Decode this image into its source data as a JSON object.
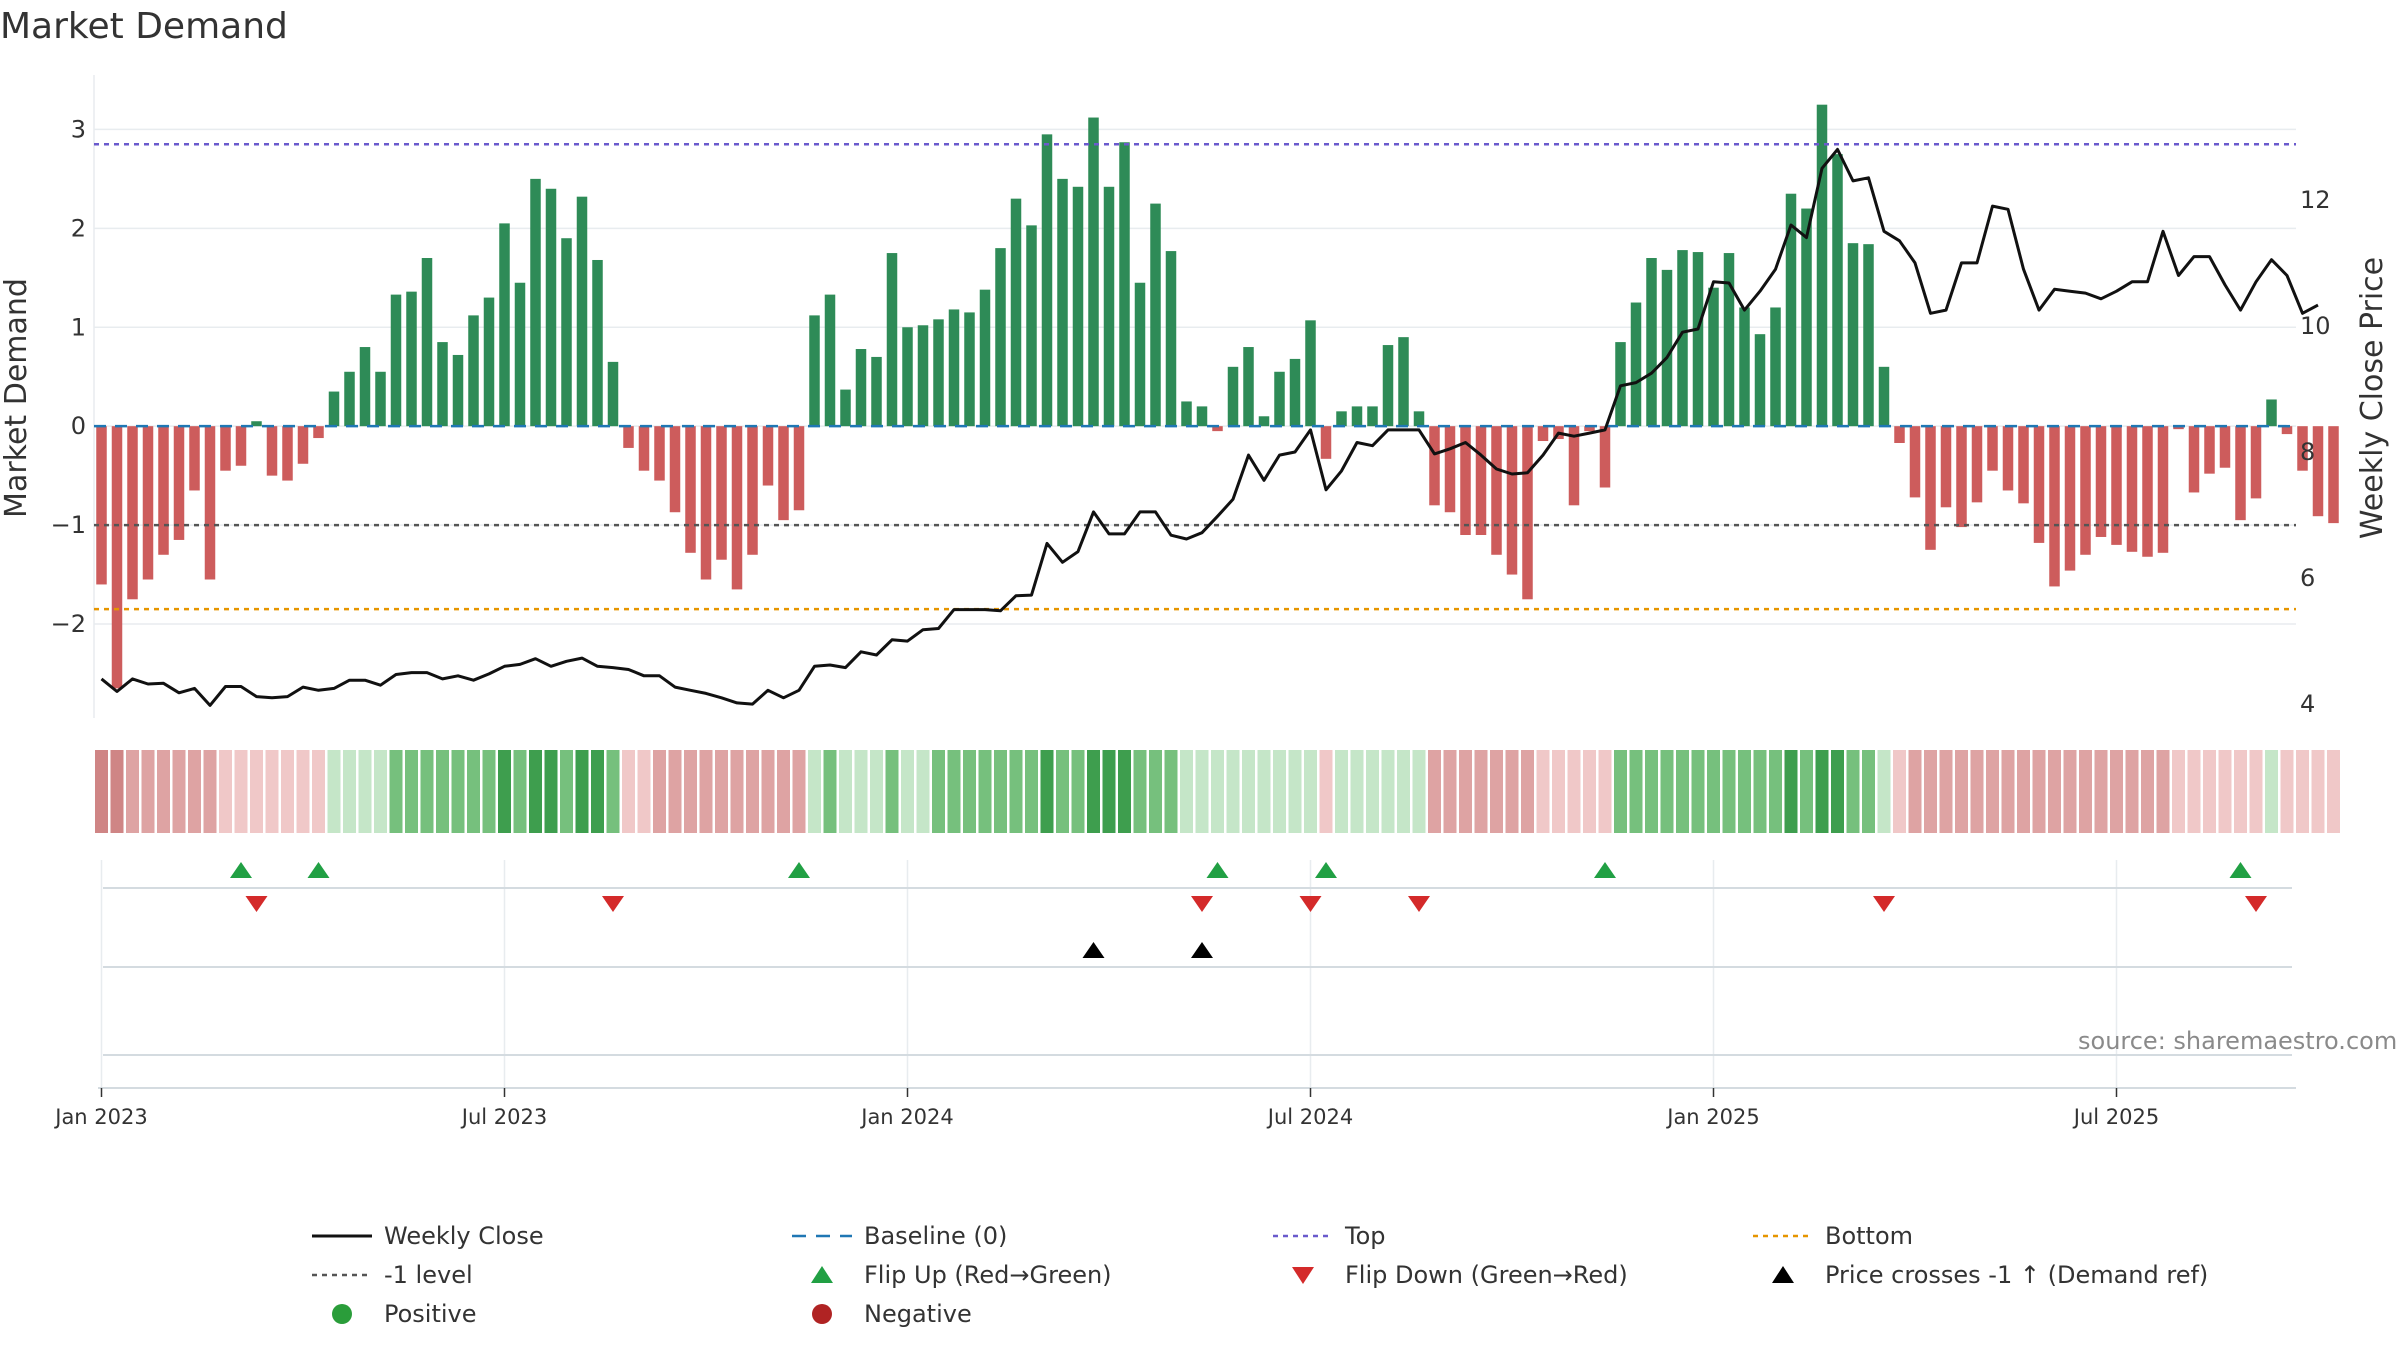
{
  "chart_data": {
    "type": "bar",
    "title": "Market Demand",
    "ylabel": "Market Demand",
    "y2label": "Weekly Close Price",
    "ylim": [
      -2.95,
      3.55
    ],
    "y2lim": [
      3.78,
      13.98
    ],
    "yticks": [
      "3",
      "2",
      "1",
      "0",
      "−1",
      "−2"
    ],
    "ytick_values": [
      3,
      2,
      1,
      0,
      -1,
      -2
    ],
    "y2ticks": [
      "12",
      "10",
      "8",
      "6",
      "4"
    ],
    "y2tick_values": [
      12,
      10,
      8,
      6,
      4
    ],
    "xticks": [
      "Jan 2023",
      "Jul 2023",
      "Jan 2024",
      "Jul 2024",
      "Jan 2025",
      "Jul 2025"
    ],
    "xtick_weeks": [
      0,
      26,
      52,
      78,
      104,
      130
    ],
    "reference_lines": {
      "top": 2.85,
      "bottom": -1.85,
      "minus_one": -1,
      "baseline": 0
    },
    "demand": [
      -1.6,
      -2.65,
      -1.75,
      -1.55,
      -1.3,
      -1.15,
      -0.65,
      -1.55,
      -0.45,
      -0.4,
      0.05,
      -0.5,
      -0.55,
      -0.38,
      -0.12,
      0.35,
      0.55,
      0.8,
      0.55,
      1.33,
      1.36,
      1.7,
      0.85,
      0.72,
      1.12,
      1.3,
      2.05,
      1.45,
      2.5,
      2.4,
      1.9,
      2.32,
      1.68,
      0.65,
      -0.22,
      -0.45,
      -0.55,
      -0.87,
      -1.28,
      -1.55,
      -1.35,
      -1.65,
      -1.3,
      -0.6,
      -0.95,
      -0.85,
      1.12,
      1.33,
      0.37,
      0.78,
      0.7,
      1.75,
      1.0,
      1.02,
      1.08,
      1.18,
      1.15,
      1.38,
      1.8,
      2.3,
      2.03,
      2.95,
      2.5,
      2.42,
      3.12,
      2.42,
      2.87,
      1.45,
      2.25,
      1.77,
      0.25,
      0.2,
      -0.05,
      0.6,
      0.8,
      0.1,
      0.55,
      0.68,
      1.07,
      -0.33,
      0.15,
      0.2,
      0.2,
      0.82,
      0.9,
      0.15,
      -0.8,
      -0.87,
      -1.1,
      -1.1,
      -1.3,
      -1.5,
      -1.75,
      -0.15,
      -0.13,
      -0.8,
      -0.05,
      -0.62,
      0.85,
      1.25,
      1.7,
      1.58,
      1.78,
      1.76,
      1.4,
      1.75,
      1.2,
      0.93,
      1.2,
      2.35,
      2.2,
      3.25,
      2.75,
      1.85,
      1.84,
      0.6,
      -0.17,
      -0.72,
      -1.25,
      -0.82,
      -1.02,
      -0.77,
      -0.45,
      -0.65,
      -0.78,
      -1.18,
      -1.62,
      -1.46,
      -1.3,
      -1.12,
      -1.2,
      -1.27,
      -1.32,
      -1.28,
      -0.03,
      -0.67,
      -0.48,
      -0.42,
      -0.95,
      -0.73,
      0.27,
      -0.08,
      -0.45,
      -0.91,
      -0.98
    ],
    "price": [
      4.4,
      4.2,
      4.4,
      4.32,
      4.33,
      4.18,
      4.25,
      3.98,
      4.28,
      4.28,
      4.12,
      4.1,
      4.12,
      4.27,
      4.22,
      4.25,
      4.38,
      4.38,
      4.3,
      4.47,
      4.5,
      4.5,
      4.4,
      4.45,
      4.38,
      4.48,
      4.6,
      4.63,
      4.72,
      4.6,
      4.68,
      4.73,
      4.6,
      4.58,
      4.55,
      4.45,
      4.45,
      4.27,
      4.22,
      4.17,
      4.1,
      4.02,
      4.0,
      4.22,
      4.1,
      4.22,
      4.6,
      4.62,
      4.58,
      4.83,
      4.78,
      5.02,
      5.0,
      5.18,
      5.2,
      5.5,
      5.5,
      5.5,
      5.48,
      5.72,
      5.73,
      6.55,
      6.25,
      6.42,
      7.05,
      6.7,
      6.7,
      7.05,
      7.05,
      6.68,
      6.62,
      6.72,
      6.98,
      7.25,
      7.95,
      7.55,
      7.95,
      8.0,
      8.35,
      7.4,
      7.7,
      8.15,
      8.1,
      8.35,
      8.35,
      8.35,
      7.97,
      8.05,
      8.15,
      7.95,
      7.73,
      7.65,
      7.67,
      7.95,
      8.3,
      8.25,
      8.3,
      8.35,
      9.05,
      9.1,
      9.25,
      9.5,
      9.9,
      9.95,
      10.7,
      10.68,
      10.25,
      10.55,
      10.9,
      11.6,
      11.4,
      12.5,
      12.8,
      12.3,
      12.35,
      11.5,
      11.35,
      11.0,
      10.2,
      10.25,
      11.0,
      11.0,
      11.9,
      11.85,
      10.9,
      10.25,
      10.58,
      10.55,
      10.52,
      10.43,
      10.55,
      10.7,
      10.7,
      11.5,
      10.8,
      11.1,
      11.1,
      10.65,
      10.25,
      10.7,
      11.05,
      10.8,
      10.2,
      10.33
    ],
    "heat_strip": {
      "palette": {
        "strong_pos": "#3e9e4e",
        "mid_pos": "#76c07d",
        "light_pos": "#c5e6c8",
        "light_neg": "#f0c8c8",
        "mid_neg": "#dea3a3",
        "strong_neg": "#cf8585"
      },
      "cells": [
        "sn",
        "sn",
        "mn",
        "mn",
        "mn",
        "mn",
        "mn",
        "mn",
        "ln",
        "ln",
        "ln",
        "ln",
        "ln",
        "ln",
        "ln",
        "lp",
        "lp",
        "lp",
        "lp",
        "mp",
        "mp",
        "mp",
        "mp",
        "mp",
        "mp",
        "mp",
        "sp",
        "mp",
        "sp",
        "sp",
        "mp",
        "sp",
        "sp",
        "mp",
        "ln",
        "ln",
        "mn",
        "mn",
        "mn",
        "mn",
        "mn",
        "mn",
        "mn",
        "mn",
        "mn",
        "mn",
        "lp",
        "mp",
        "lp",
        "lp",
        "lp",
        "mp",
        "lp",
        "lp",
        "mp",
        "mp",
        "mp",
        "mp",
        "mp",
        "mp",
        "mp",
        "sp",
        "mp",
        "mp",
        "sp",
        "sp",
        "sp",
        "mp",
        "mp",
        "mp",
        "lp",
        "lp",
        "lp",
        "lp",
        "lp",
        "lp",
        "lp",
        "lp",
        "lp",
        "ln",
        "lp",
        "lp",
        "lp",
        "lp",
        "lp",
        "lp",
        "mn",
        "mn",
        "mn",
        "mn",
        "mn",
        "mn",
        "mn",
        "ln",
        "ln",
        "ln",
        "ln",
        "ln",
        "mp",
        "mp",
        "mp",
        "mp",
        "mp",
        "mp",
        "mp",
        "mp",
        "mp",
        "mp",
        "mp",
        "sp",
        "mp",
        "sp",
        "sp",
        "mp",
        "mp",
        "lp",
        "ln",
        "mn",
        "mn",
        "mn",
        "mn",
        "mn",
        "mn",
        "mn",
        "mn",
        "mn",
        "mn",
        "mn",
        "mn",
        "mn",
        "mn",
        "mn",
        "mn",
        "mn",
        "ln",
        "ln",
        "ln",
        "ln",
        "ln",
        "ln",
        "lp",
        "ln",
        "ln",
        "ln",
        "ln"
      ]
    },
    "flip_up_weeks": [
      9,
      14,
      45,
      72,
      79,
      97,
      138
    ],
    "flip_down_weeks": [
      10,
      33,
      71,
      78,
      85,
      115,
      139
    ],
    "price_cross_weeks": [
      64,
      71
    ]
  },
  "legend": {
    "items": [
      {
        "label": "Weekly Close",
        "key": "weekly_close"
      },
      {
        "label": "Baseline (0)",
        "key": "baseline"
      },
      {
        "label": "Top",
        "key": "top"
      },
      {
        "label": "Bottom",
        "key": "bottom"
      },
      {
        "label": "-1 level",
        "key": "minus_one"
      },
      {
        "label": "Flip Up (Red→Green)",
        "key": "flip_up"
      },
      {
        "label": "Flip Down (Green→Red)",
        "key": "flip_down"
      },
      {
        "label": "Price crosses -1 ↑ (Demand ref)",
        "key": "price_cross"
      },
      {
        "label": "Positive",
        "key": "positive"
      },
      {
        "label": "Negative",
        "key": "negative"
      }
    ]
  },
  "watermark": "source: sharemaestro.com",
  "colors": {
    "positive_bar": "#2e8b57",
    "negative_bar": "#cd5c5c",
    "baseline": "#1f77b4",
    "top_line": "#6a5acd",
    "bottom_line": "#e69500",
    "minus_one_line": "#555555",
    "price_line": "#111111",
    "flip_up": "#21a044",
    "flip_down": "#d42a2a",
    "price_cross": "#000000",
    "positive_dot": "#2a9d3a",
    "negative_dot": "#b02323",
    "grid": "#e8ecef",
    "rail": "#d4dbe0"
  }
}
